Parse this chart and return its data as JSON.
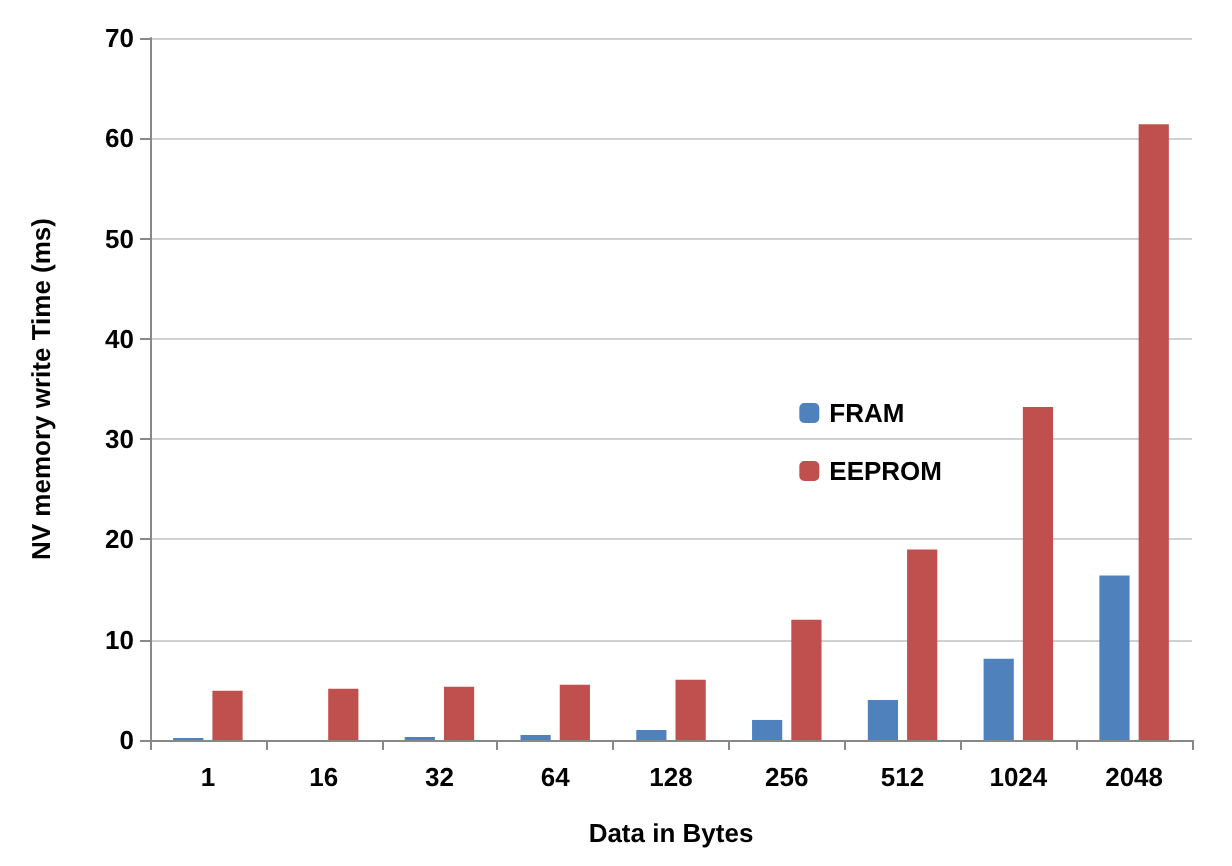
{
  "chart_data": {
    "type": "bar",
    "xlabel": "Data in Bytes",
    "ylabel": "NV memory write Time (ms)",
    "categories": [
      "1",
      "16",
      "32",
      "64",
      "128",
      "256",
      "512",
      "1024",
      "2048"
    ],
    "series": [
      {
        "name": "FRAM",
        "color": "#4f81bd",
        "values": [
          0.2,
          null,
          0.3,
          0.5,
          1.0,
          2.0,
          4.0,
          8.1,
          16.4
        ]
      },
      {
        "name": "EEPROM",
        "color": "#c0504d",
        "values": [
          4.9,
          5.1,
          5.3,
          5.5,
          6.0,
          12.0,
          19.0,
          33.2,
          61.4
        ]
      }
    ],
    "ylim": [
      0,
      70
    ],
    "yticks": [
      0,
      10,
      20,
      30,
      40,
      50,
      60,
      70
    ],
    "grid": "y",
    "legend": "right"
  }
}
